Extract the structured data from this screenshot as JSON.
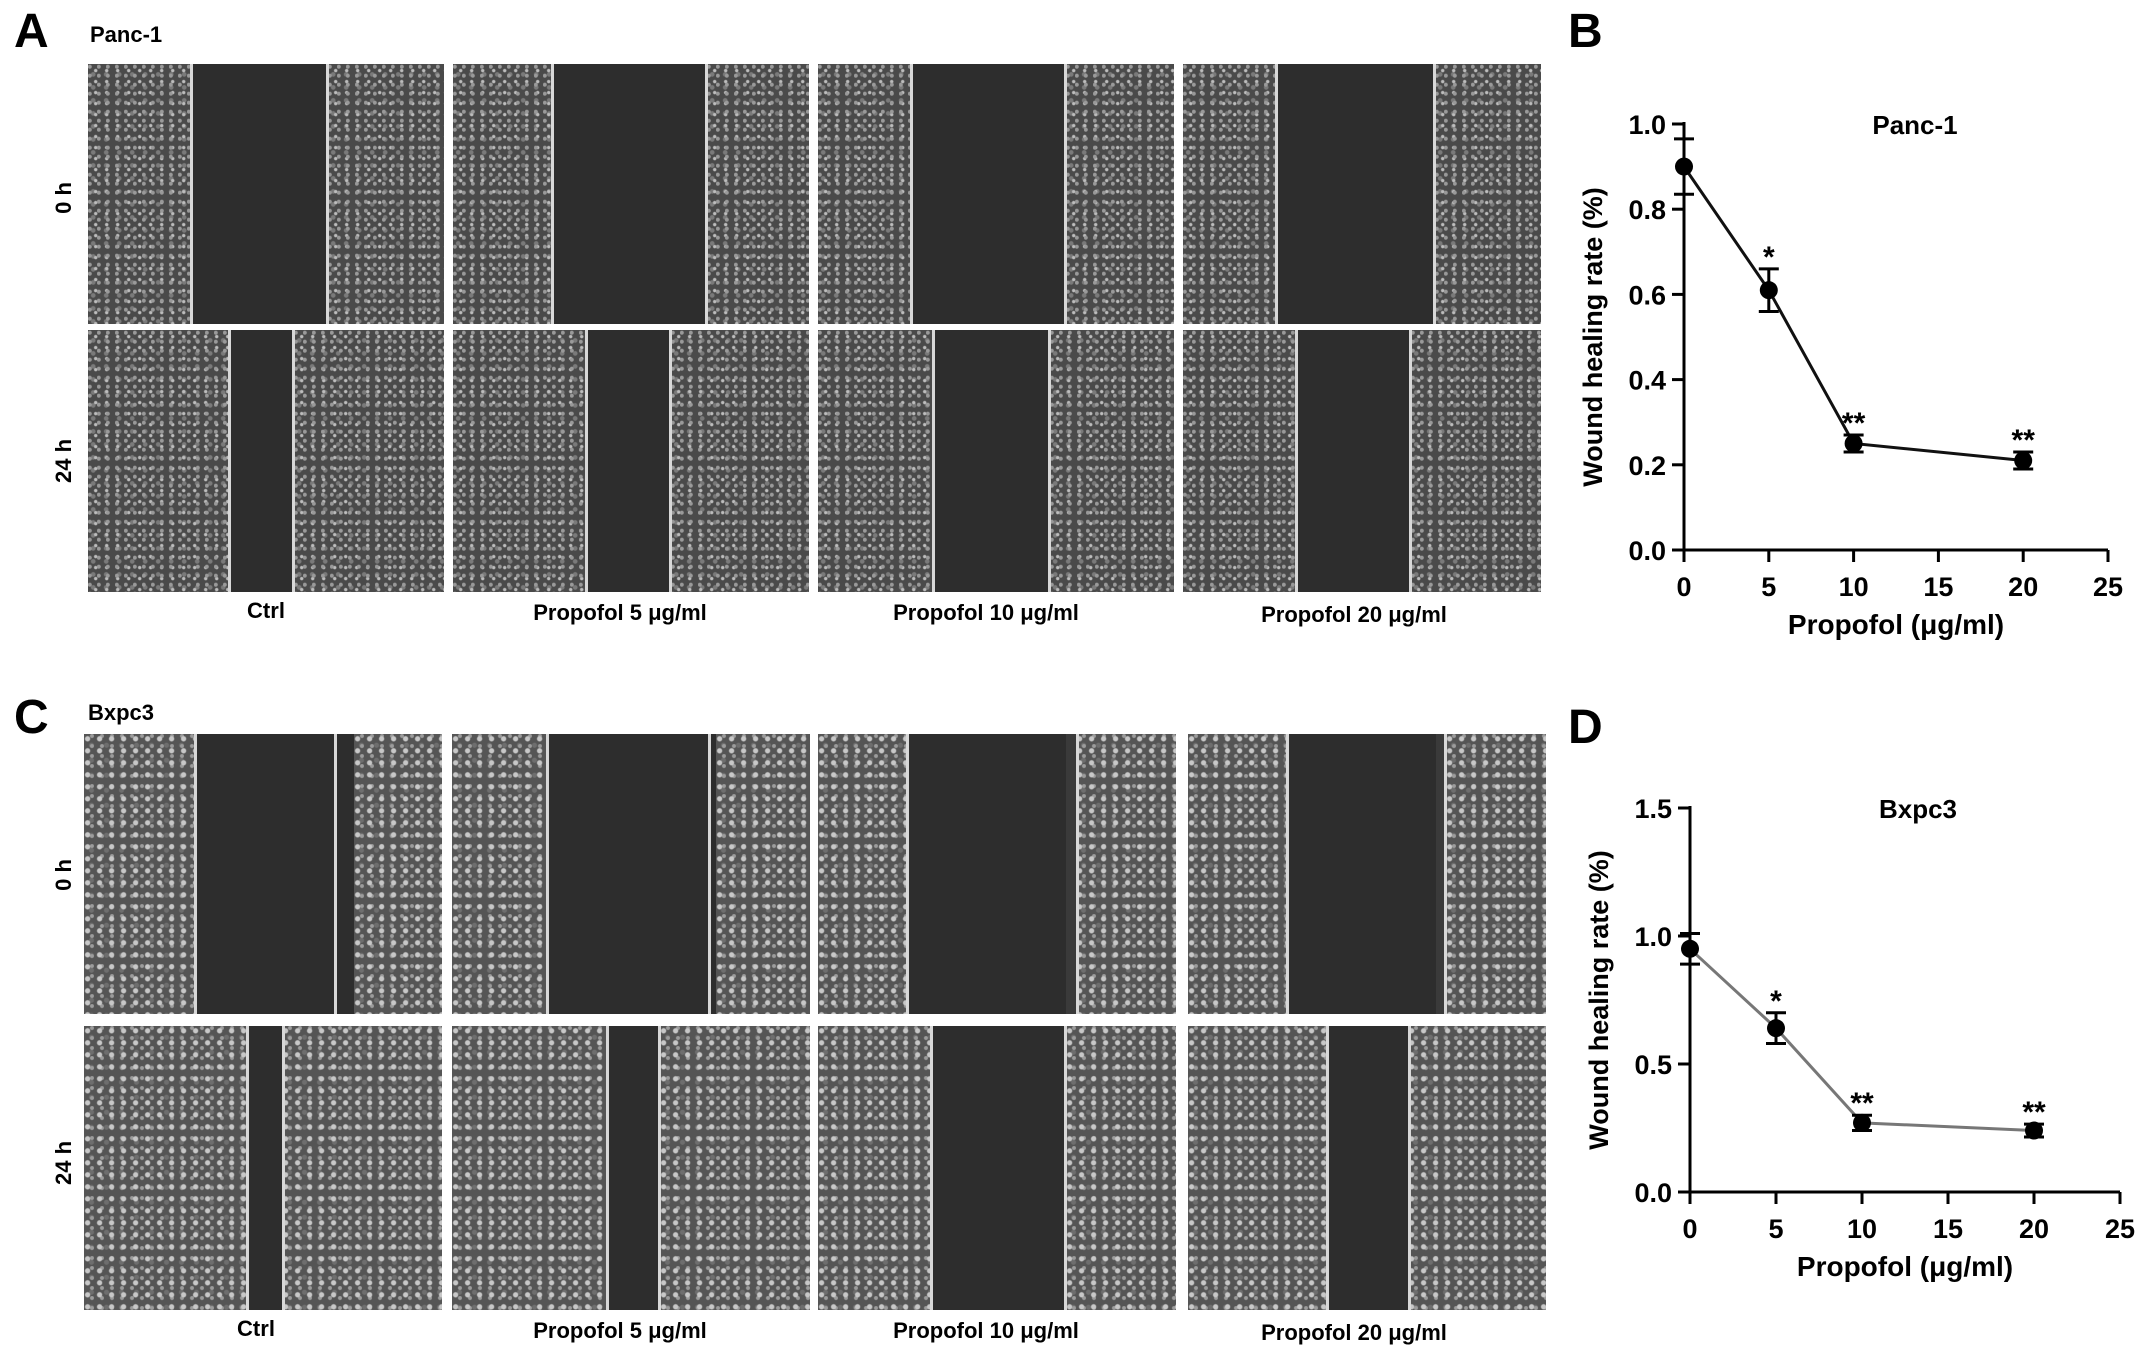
{
  "panels": {
    "A": {
      "letter": "A",
      "cell_line": "Panc-1"
    },
    "B": {
      "letter": "B"
    },
    "C": {
      "letter": "C",
      "cell_line": "Bxpc3"
    },
    "D": {
      "letter": "D"
    }
  },
  "row_labels": [
    "0 h",
    "24 h"
  ],
  "column_labels": [
    "Ctrl",
    "Propofol 5 μg/ml",
    "Propofol 10 μg/ml",
    "Propofol 20 μg/ml"
  ],
  "chart_data": [
    {
      "type": "line",
      "title": "Panc-1",
      "xlabel": "Propofol (μg/ml)",
      "ylabel": "Wound healing rate (%)",
      "x": [
        0,
        5,
        10,
        20
      ],
      "y": [
        0.9,
        0.61,
        0.25,
        0.21
      ],
      "error": [
        0.065,
        0.05,
        0.02,
        0.02
      ],
      "significance": [
        "",
        "*",
        "**",
        "**"
      ],
      "xlim": [
        0,
        25
      ],
      "ylim": [
        0,
        1.0
      ],
      "xticks": [
        "0",
        "5",
        "10",
        "15",
        "20",
        "25"
      ],
      "yticks": [
        "0.0",
        "0.2",
        "0.4",
        "0.6",
        "0.8",
        "1.0"
      ],
      "xtick_values": [
        0,
        5,
        10,
        15,
        20,
        25
      ],
      "ytick_values": [
        0,
        0.2,
        0.4,
        0.6,
        0.8,
        1.0
      ],
      "line_color": "#111111",
      "grid": false
    },
    {
      "type": "line",
      "title": "Bxpc3",
      "xlabel": "Propofol (μg/ml)",
      "ylabel": "Wound healing rate (%)",
      "x": [
        0,
        5,
        10,
        20
      ],
      "y": [
        0.95,
        0.64,
        0.27,
        0.24
      ],
      "error": [
        0.06,
        0.06,
        0.03,
        0.025
      ],
      "significance": [
        "",
        "*",
        "**",
        "**"
      ],
      "xlim": [
        0,
        25
      ],
      "ylim": [
        0,
        1.5
      ],
      "xticks": [
        "0",
        "5",
        "10",
        "15",
        "20",
        "25"
      ],
      "yticks": [
        "0.0",
        "0.5",
        "1.0",
        "1.5"
      ],
      "xtick_values": [
        0,
        5,
        10,
        15,
        20,
        25
      ],
      "ytick_values": [
        0,
        0.5,
        1.0,
        1.5
      ],
      "line_color": "#777777",
      "grid": false
    }
  ]
}
